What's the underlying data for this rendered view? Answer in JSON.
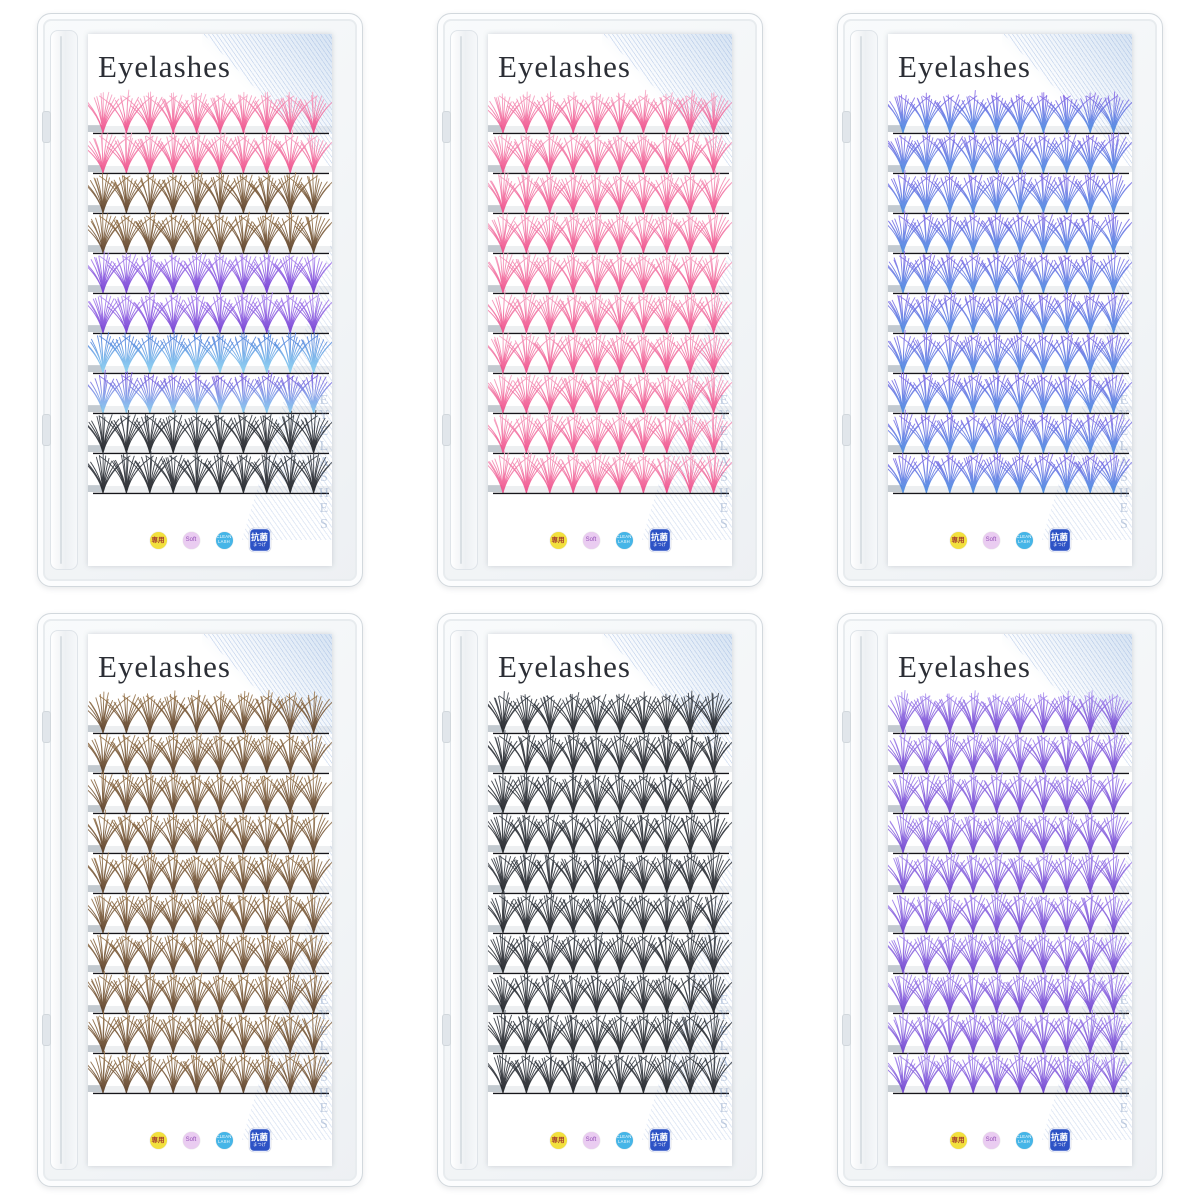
{
  "shared": {
    "title": "Eyelashes",
    "watermark_letters": [
      "E",
      "Y",
      "E",
      "L",
      "A",
      "S",
      "H",
      "E",
      "S"
    ],
    "badges": [
      {
        "shape": "circle",
        "bg": "#f2e13e",
        "fg": "#a2392c",
        "lines": [
          "専用"
        ]
      },
      {
        "shape": "circle",
        "bg": "#eaccf1",
        "fg": "#9450b8",
        "lines": [
          "Soft"
        ]
      },
      {
        "shape": "circle",
        "bg": "#45b5e7",
        "fg": "#ffffff",
        "lines": [
          "CLEAN",
          "LASH"
        ]
      },
      {
        "shape": "square",
        "bg": "#2d52c5",
        "fg": "#ffffff",
        "lines": [
          "抗菌",
          "まつげ"
        ]
      }
    ],
    "rows_per_tray": 10,
    "clusters_per_row": 10,
    "line_color": "#16161b",
    "strip_color": "#9aa6b0"
  },
  "trays": [
    {
      "name": "mixed-pink-brown-purple-blue-black",
      "rows": [
        {
          "tip": "#f6a9c6",
          "base": "#ee3f80"
        },
        {
          "tip": "#f6a9c6",
          "base": "#ee3f80"
        },
        {
          "tip": "#9d7a50",
          "base": "#4f3118"
        },
        {
          "tip": "#9d7a50",
          "base": "#4f3118"
        },
        {
          "tip": "#b18ef2",
          "base": "#6a2fd0"
        },
        {
          "tip": "#b18ef2",
          "base": "#6a2fd0"
        },
        {
          "tip": "#4a74d8",
          "base": "#85d2f2"
        },
        {
          "tip": "#7a55dc",
          "base": "#7cc8ee"
        },
        {
          "tip": "#3a4049",
          "base": "#121419"
        },
        {
          "tip": "#3a4049",
          "base": "#121419"
        }
      ]
    },
    {
      "name": "pink",
      "rows": [
        {
          "tip": "#f6a9c6",
          "base": "#ee3f80"
        },
        {
          "tip": "#f6a9c6",
          "base": "#ee3f80"
        },
        {
          "tip": "#f6a9c6",
          "base": "#ee3f80"
        },
        {
          "tip": "#f6a9c6",
          "base": "#ee3f80"
        },
        {
          "tip": "#f6a9c6",
          "base": "#ee3f80"
        },
        {
          "tip": "#f6a9c6",
          "base": "#ee3f80"
        },
        {
          "tip": "#f6a9c6",
          "base": "#ee3f80"
        },
        {
          "tip": "#f6a9c6",
          "base": "#ee3f80"
        },
        {
          "tip": "#f6a9c6",
          "base": "#ee3f80"
        },
        {
          "tip": "#f6a9c6",
          "base": "#ee3f80"
        }
      ]
    },
    {
      "name": "blue-violet",
      "rows": [
        {
          "tip": "#8a68e6",
          "base": "#3f86e0"
        },
        {
          "tip": "#8a68e6",
          "base": "#3f86e0"
        },
        {
          "tip": "#8a68e6",
          "base": "#3f86e0"
        },
        {
          "tip": "#8a68e6",
          "base": "#3f86e0"
        },
        {
          "tip": "#8a68e6",
          "base": "#3f86e0"
        },
        {
          "tip": "#8a68e6",
          "base": "#3f86e0"
        },
        {
          "tip": "#8a68e6",
          "base": "#3f86e0"
        },
        {
          "tip": "#8a68e6",
          "base": "#3f86e0"
        },
        {
          "tip": "#8a68e6",
          "base": "#3f86e0"
        },
        {
          "tip": "#8a68e6",
          "base": "#3f86e0"
        }
      ]
    },
    {
      "name": "brown",
      "rows": [
        {
          "tip": "#9d7a50",
          "base": "#4f3118"
        },
        {
          "tip": "#9d7a50",
          "base": "#4f3118"
        },
        {
          "tip": "#9d7a50",
          "base": "#4f3118"
        },
        {
          "tip": "#9d7a50",
          "base": "#4f3118"
        },
        {
          "tip": "#9d7a50",
          "base": "#4f3118"
        },
        {
          "tip": "#9d7a50",
          "base": "#4f3118"
        },
        {
          "tip": "#9d7a50",
          "base": "#4f3118"
        },
        {
          "tip": "#9d7a50",
          "base": "#4f3118"
        },
        {
          "tip": "#9d7a50",
          "base": "#4f3118"
        },
        {
          "tip": "#9d7a50",
          "base": "#4f3118"
        }
      ]
    },
    {
      "name": "black",
      "rows": [
        {
          "tip": "#3a4049",
          "base": "#121419"
        },
        {
          "tip": "#3a4049",
          "base": "#121419"
        },
        {
          "tip": "#3a4049",
          "base": "#121419"
        },
        {
          "tip": "#3a4049",
          "base": "#121419"
        },
        {
          "tip": "#3a4049",
          "base": "#121419"
        },
        {
          "tip": "#3a4049",
          "base": "#121419"
        },
        {
          "tip": "#3a4049",
          "base": "#121419"
        },
        {
          "tip": "#3a4049",
          "base": "#121419"
        },
        {
          "tip": "#3a4049",
          "base": "#121419"
        },
        {
          "tip": "#3a4049",
          "base": "#121419"
        }
      ]
    },
    {
      "name": "purple",
      "rows": [
        {
          "tip": "#a98ef0",
          "base": "#6635cc"
        },
        {
          "tip": "#a98ef0",
          "base": "#6635cc"
        },
        {
          "tip": "#a98ef0",
          "base": "#6635cc"
        },
        {
          "tip": "#a98ef0",
          "base": "#6635cc"
        },
        {
          "tip": "#a98ef0",
          "base": "#6635cc"
        },
        {
          "tip": "#a98ef0",
          "base": "#6635cc"
        },
        {
          "tip": "#a98ef0",
          "base": "#6635cc"
        },
        {
          "tip": "#a98ef0",
          "base": "#6635cc"
        },
        {
          "tip": "#a98ef0",
          "base": "#6635cc"
        },
        {
          "tip": "#a98ef0",
          "base": "#6635cc"
        }
      ]
    }
  ]
}
